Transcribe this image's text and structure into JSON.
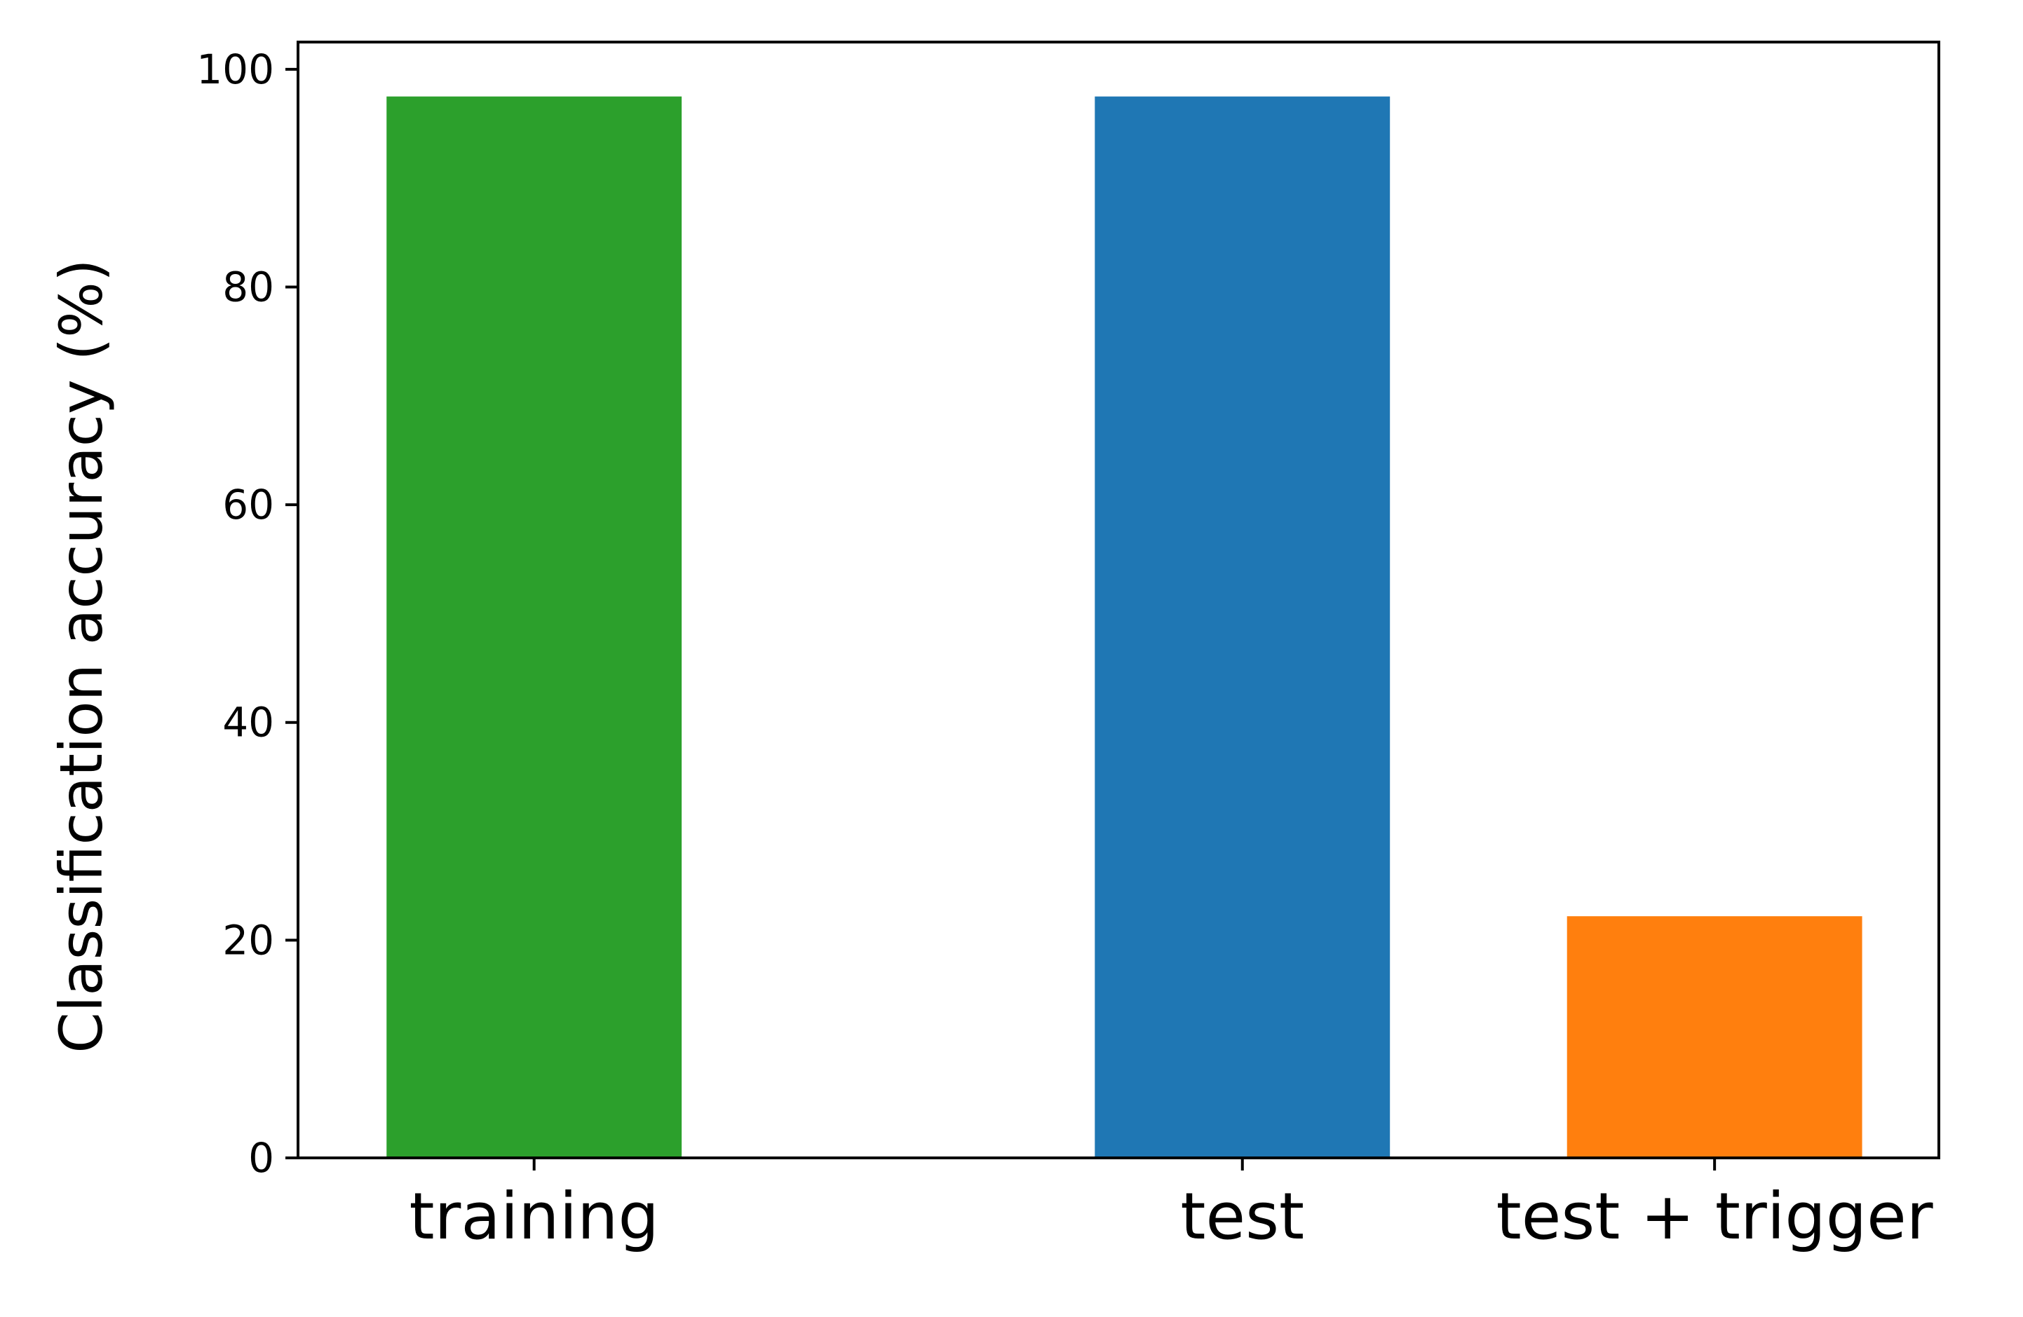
{
  "chart_data": {
    "type": "bar",
    "title": "",
    "xlabel": "",
    "ylabel": "Classification accuracy (%)",
    "x": [
      0,
      3,
      5
    ],
    "categories": [
      "training",
      "test",
      "test + trigger"
    ],
    "values": [
      97.5,
      97.5,
      22.2
    ],
    "colors": [
      "#2ca02c",
      "#1f77b4",
      "#ff7f0e"
    ],
    "ylim": [
      0,
      102.5
    ],
    "xlim": [
      -1.0,
      5.95
    ],
    "yticks": [
      0,
      20,
      40,
      60,
      80,
      100
    ],
    "ytick_labels": [
      "0",
      "20",
      "40",
      "60",
      "80",
      "100"
    ],
    "grid": false,
    "legend": "none"
  }
}
